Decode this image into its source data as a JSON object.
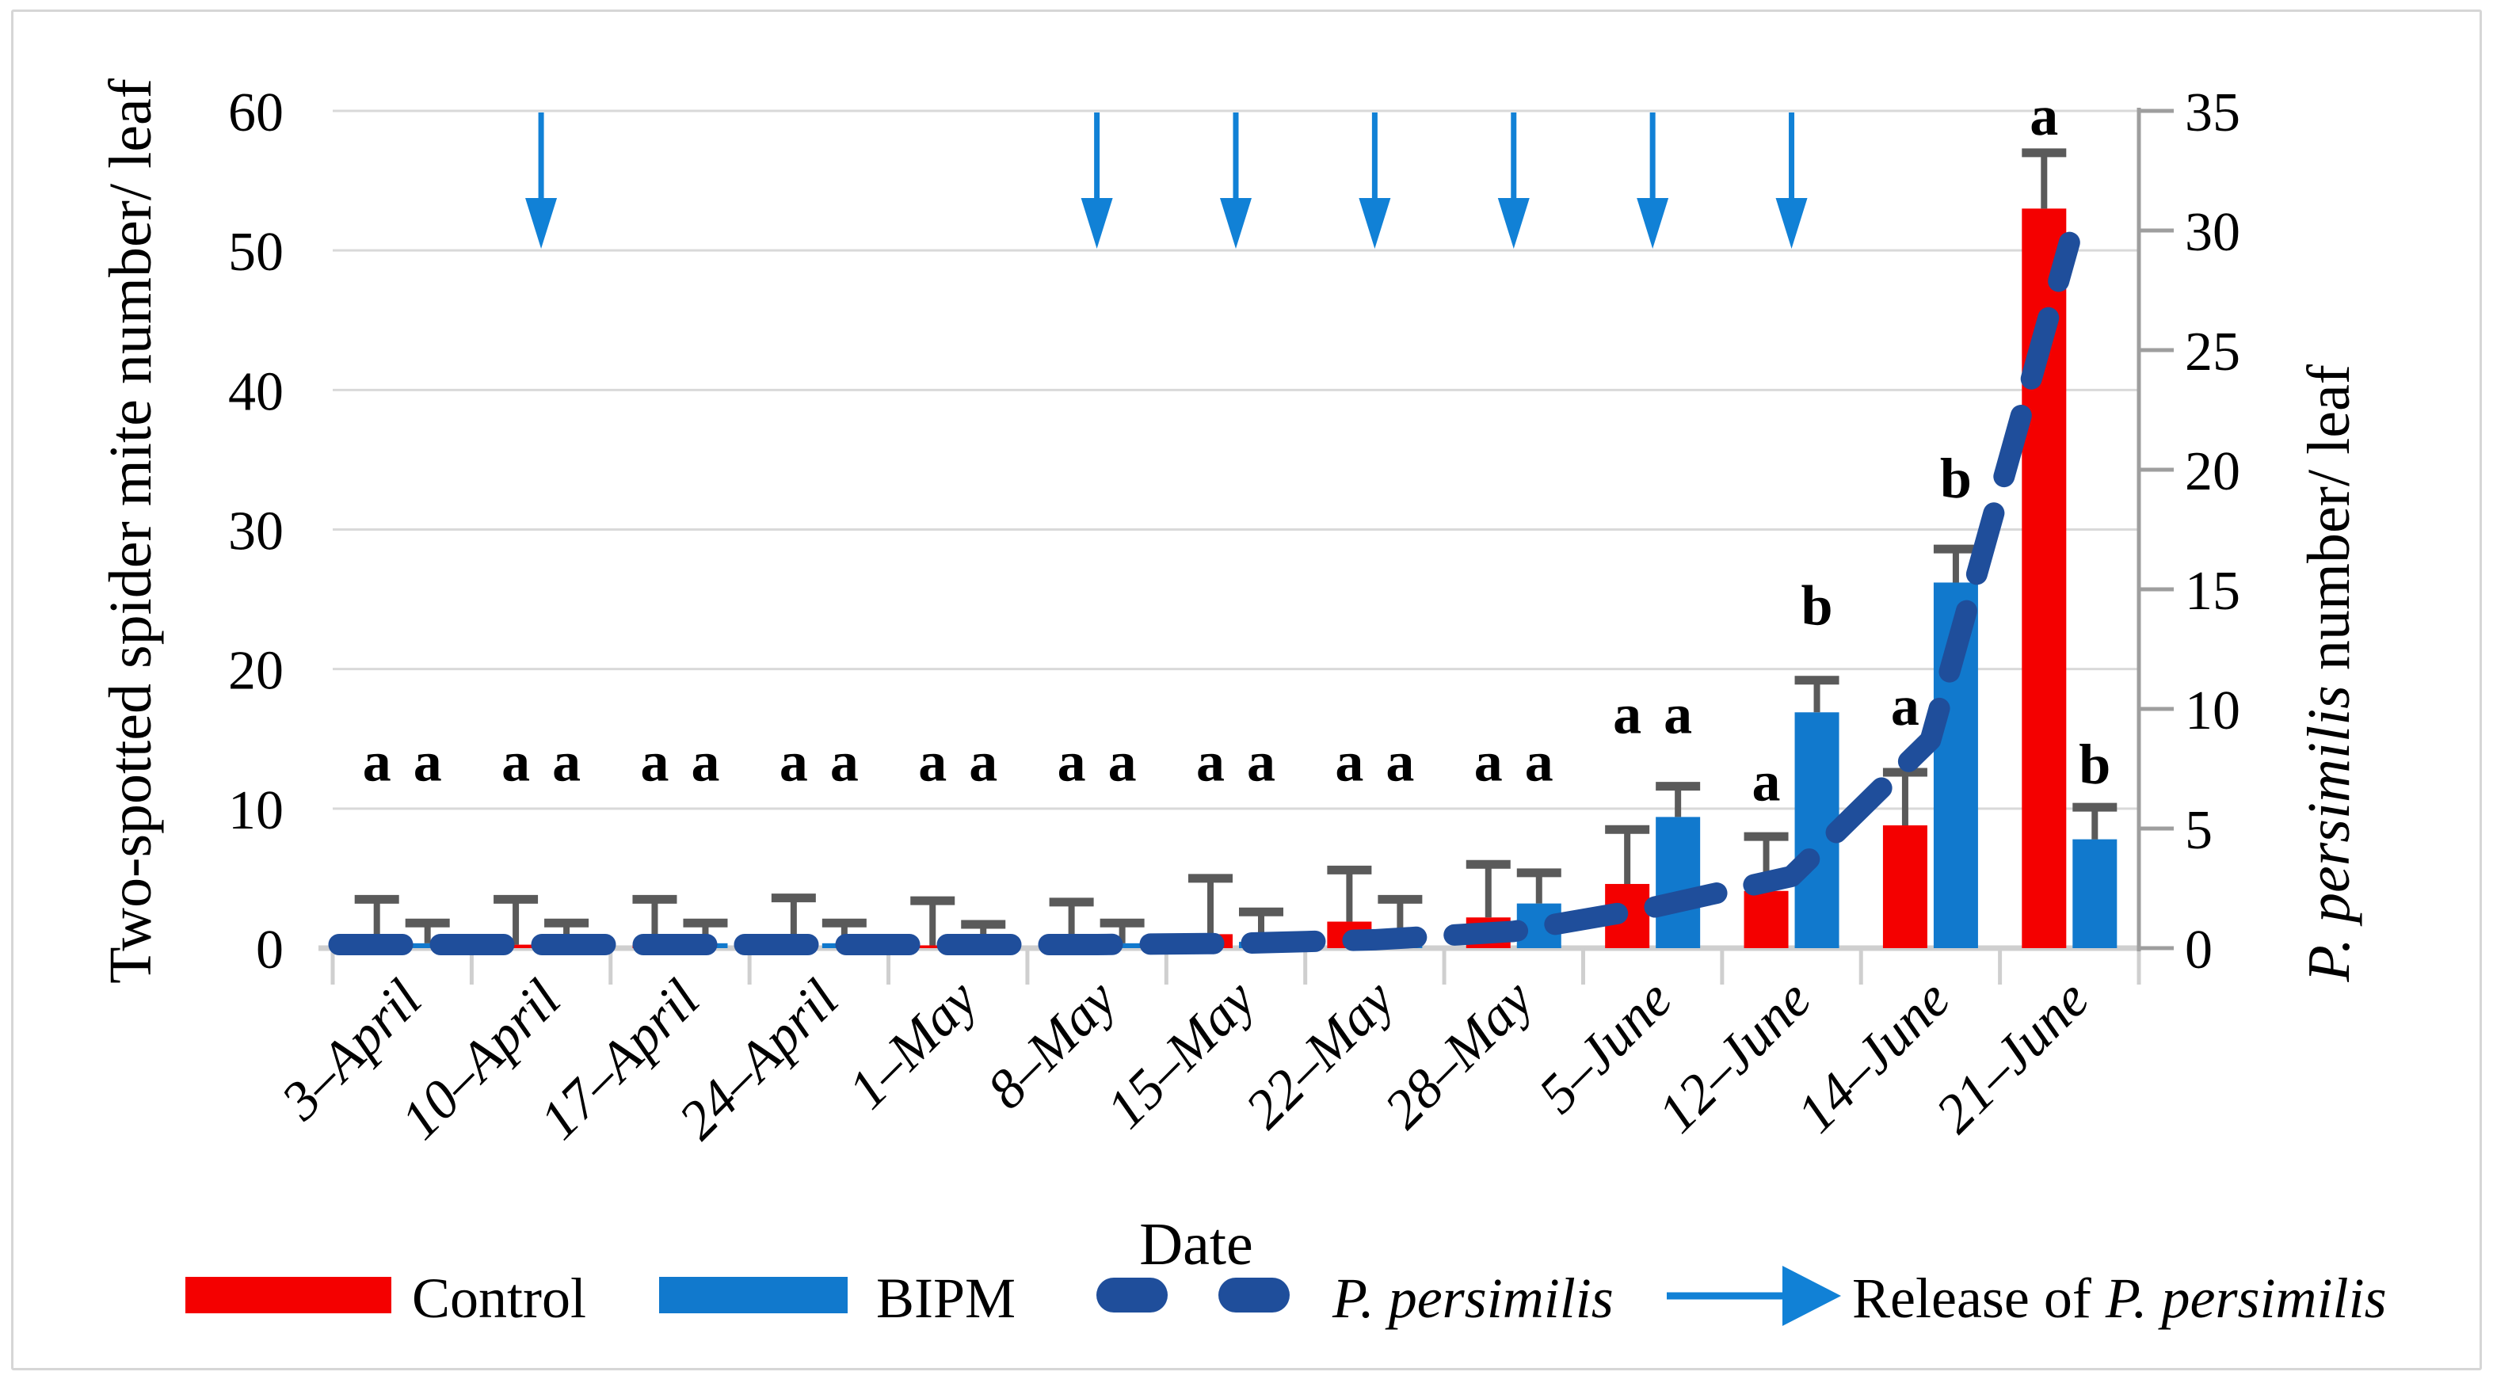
{
  "axes": {
    "left": {
      "title": "Two-spotted spider mite number/ leaf",
      "ticks": [
        0,
        10,
        20,
        30,
        40,
        50,
        60
      ],
      "max": 60
    },
    "right": {
      "title_italic": "P. persimilis",
      "title_rest": " number/ leaf",
      "ticks": [
        0,
        5,
        10,
        15,
        20,
        25,
        30,
        35
      ],
      "max": 35
    },
    "x": {
      "title": "Date"
    }
  },
  "legend": {
    "control_label": "Control",
    "bipm_label": "BIPM",
    "persimilis_label": "P. persimilis",
    "release_prefix": "Release of ",
    "release_species": "P. persimilis"
  },
  "colors": {
    "control_red": "#F40000",
    "bipm_blue": "#1179CD",
    "persimilis_navy": "#1F4E9B",
    "arrow_blue": "#1181D6",
    "error_gray": "#5A5A5A",
    "gridline_gray": "#D9D9D9",
    "axis_light_gray": "#CFCFCF",
    "right_axis_gray": "#9E9E9E",
    "text_black": "#000000"
  },
  "chart_data": {
    "type": "bar+line",
    "title": "",
    "xlabel": "Date",
    "ylabel_left": "Two-spotted spider mite number/ leaf",
    "ylabel_right": "P. persimilis number/ leaf",
    "ylim_left": [
      0,
      60
    ],
    "ylim_right": [
      0,
      35
    ],
    "grid": true,
    "legend_position": "bottom",
    "categories": [
      "3–April",
      "10–April",
      "17–April",
      "24–April",
      "1–May",
      "8–May",
      "15–May",
      "22–May",
      "28–May",
      "5–June",
      "12–June",
      "14–June",
      "21–June"
    ],
    "series": [
      {
        "name": "Control",
        "type": "bar",
        "axis": "left",
        "values": [
          0.25,
          0.25,
          0.25,
          0.25,
          0.2,
          0.25,
          1.0,
          1.9,
          2.2,
          4.6,
          4.1,
          8.8,
          53
        ],
        "error_top": [
          3.5,
          3.5,
          3.5,
          3.6,
          3.4,
          3.3,
          5.0,
          5.6,
          6.0,
          8.5,
          8.0,
          12.6,
          57
        ],
        "sig_letters": [
          "a",
          "a",
          "a",
          "a",
          "a",
          "a",
          "a",
          "a",
          "a",
          "a",
          "a",
          "a",
          "a"
        ],
        "letter_y": [
          12,
          12,
          12,
          12,
          12,
          12,
          12,
          12,
          12,
          15.4,
          10.6,
          16,
          58.3
        ]
      },
      {
        "name": "BIPM",
        "type": "bar",
        "axis": "left",
        "values": [
          0.35,
          0.35,
          0.35,
          0.35,
          0.3,
          0.35,
          0.45,
          0.9,
          3.2,
          9.4,
          16.9,
          26.2,
          7.8
        ],
        "error_top": [
          1.8,
          1.8,
          1.8,
          1.8,
          1.7,
          1.8,
          2.6,
          3.5,
          5.4,
          11.6,
          19.2,
          28.6,
          10.1
        ],
        "sig_letters": [
          "a",
          "a",
          "a",
          "a",
          "a",
          "a",
          "a",
          "a",
          "a",
          "a",
          "b",
          "b",
          "b"
        ],
        "letter_y": [
          12,
          12,
          12,
          12,
          12,
          12,
          12,
          12,
          12,
          15.4,
          23.2,
          32.3,
          11.8
        ]
      },
      {
        "name": "P. persimilis",
        "type": "dashed-line",
        "axis": "right",
        "values": [
          0.15,
          0.15,
          0.15,
          0.15,
          0.15,
          0.15,
          0.2,
          0.35,
          0.7,
          1.7,
          3.0,
          8.7,
          29.5
        ]
      }
    ],
    "release_arrow_categories": [
      "10–April",
      "8–May",
      "15–May",
      "22–May",
      "28–May",
      "5–June",
      "12–June"
    ],
    "annotations": "Blue downward arrows mark P. persimilis release dates; letters a/b are significance groups"
  }
}
